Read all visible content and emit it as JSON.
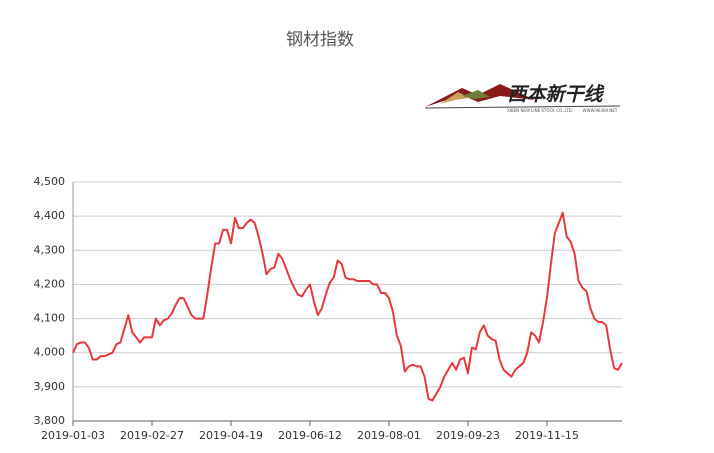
{
  "chart_data": {
    "type": "line",
    "title": "钢材指数",
    "logo": {
      "text": "西本新干线",
      "subtext": "XIBEN NEW LINE STOCK CO.,LTD.",
      "url": "WWW.96369.NET"
    },
    "categories": [
      "2019-01-03",
      null,
      null,
      null,
      null,
      null,
      null,
      null,
      null,
      null,
      null,
      null,
      null,
      null,
      null,
      null,
      null,
      null,
      null,
      null,
      "2019-02-27",
      null,
      null,
      null,
      null,
      null,
      null,
      null,
      null,
      null,
      null,
      null,
      null,
      null,
      null,
      null,
      null,
      null,
      null,
      null,
      "2019-04-19",
      null,
      null,
      null,
      null,
      null,
      null,
      null,
      null,
      null,
      null,
      null,
      null,
      null,
      null,
      null,
      null,
      null,
      null,
      null,
      "2019-06-12",
      null,
      null,
      null,
      null,
      null,
      null,
      null,
      null,
      null,
      null,
      null,
      null,
      null,
      null,
      null,
      null,
      null,
      null,
      null,
      "2019-08-01",
      null,
      null,
      null,
      null,
      null,
      null,
      null,
      null,
      null,
      null,
      null,
      null,
      null,
      null,
      null,
      null,
      null,
      null,
      null,
      "2019-09-23",
      null,
      null,
      null,
      null,
      null,
      null,
      null,
      null,
      null,
      null,
      null,
      null,
      null,
      null,
      null,
      null,
      null,
      null,
      null,
      "2019-11-15",
      null,
      null,
      null,
      null,
      null,
      null,
      null,
      null,
      null,
      null,
      null,
      null,
      null,
      null,
      null,
      null,
      null,
      null,
      null
    ],
    "series": [
      {
        "name": "钢材指数",
        "color": "#e8383d",
        "values": [
          4000,
          4025,
          4030,
          4030,
          4015,
          3980,
          3980,
          3990,
          3990,
          3995,
          4000,
          4025,
          4030,
          4070,
          4110,
          4060,
          4045,
          4030,
          4045,
          4045,
          4045,
          4100,
          4080,
          4095,
          4100,
          4115,
          4140,
          4160,
          4160,
          4135,
          4110,
          4100,
          4100,
          4100,
          4170,
          4250,
          4320,
          4320,
          4360,
          4360,
          4320,
          4395,
          4365,
          4365,
          4380,
          4390,
          4380,
          4340,
          4290,
          4230,
          4245,
          4250,
          4290,
          4275,
          4245,
          4215,
          4190,
          4170,
          4165,
          4185,
          4200,
          4150,
          4110,
          4130,
          4170,
          4205,
          4220,
          4270,
          4260,
          4220,
          4215,
          4215,
          4210,
          4210,
          4210,
          4210,
          4200,
          4200,
          4175,
          4175,
          4160,
          4120,
          4050,
          4020,
          3945,
          3960,
          3965,
          3960,
          3960,
          3930,
          3865,
          3860,
          3880,
          3900,
          3930,
          3950,
          3970,
          3950,
          3980,
          3985,
          3940,
          4015,
          4010,
          4060,
          4080,
          4050,
          4040,
          4035,
          3980,
          3950,
          3940,
          3930,
          3950,
          3960,
          3970,
          4000,
          4060,
          4050,
          4030,
          4090,
          4160,
          4260,
          4350,
          4380,
          4410,
          4340,
          4325,
          4290,
          4210,
          4190,
          4180,
          4130,
          4100,
          4090,
          4090,
          4080,
          4010,
          3955,
          3950,
          3970
        ]
      }
    ],
    "ylim": [
      3800,
      4500
    ],
    "yticks": [
      {
        "value": 3800,
        "label": "3,800"
      },
      {
        "value": 3900,
        "label": "3,900"
      },
      {
        "value": 4000,
        "label": "4,000"
      },
      {
        "value": 4100,
        "label": "4,100"
      },
      {
        "value": 4200,
        "label": "4,200"
      },
      {
        "value": 4300,
        "label": "4,300"
      },
      {
        "value": 4400,
        "label": "4,400"
      },
      {
        "value": 4500,
        "label": "4,500"
      }
    ],
    "grid": true
  }
}
